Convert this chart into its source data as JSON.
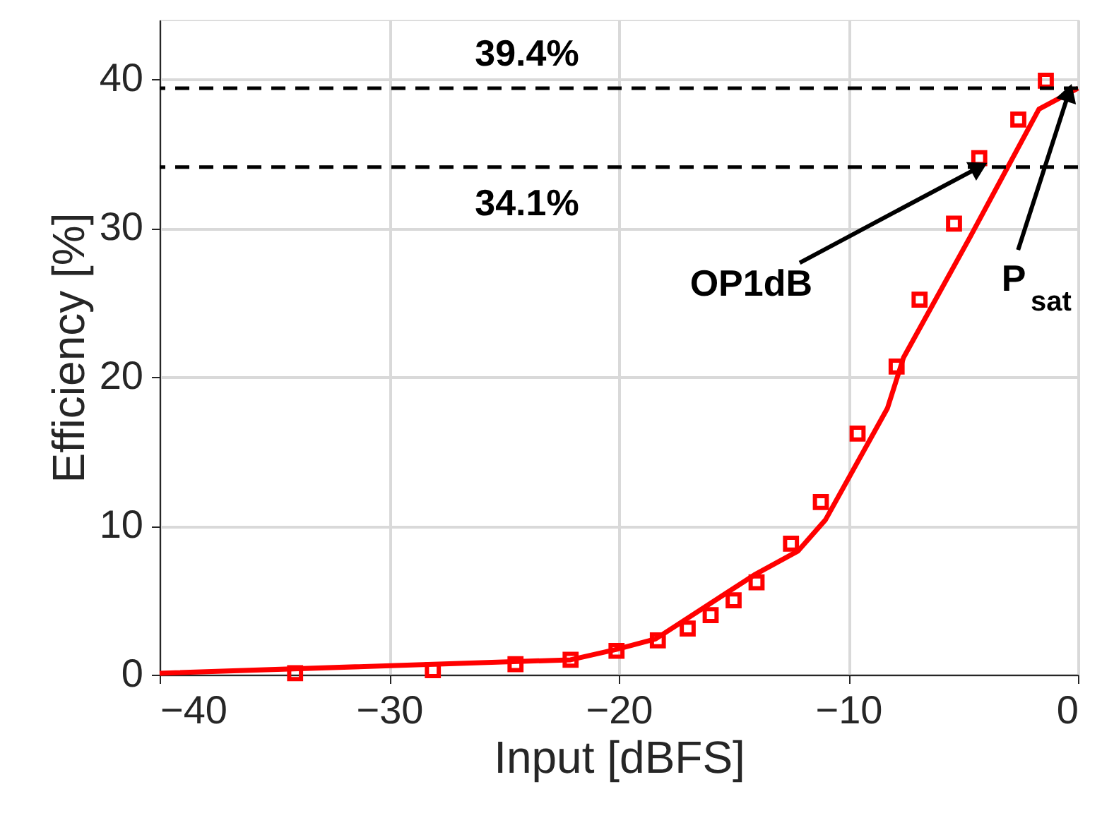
{
  "chart_data": {
    "type": "line",
    "xlabel": "Input [dBFS]",
    "ylabel": "Efficiency [%]",
    "xlim": [
      -40,
      0
    ],
    "xticks": [
      -40,
      -30,
      -20,
      -10,
      0
    ],
    "ylim": [
      0,
      44
    ],
    "yticks": [
      0,
      10,
      20,
      30,
      40
    ],
    "grid": true,
    "series": [
      {
        "type": "scatter",
        "marker": "square",
        "color": "#ff0000",
        "x": [
          -34.1,
          -28.1,
          -24.5,
          -22.1,
          -20.1,
          -18.3,
          -17.0,
          -16.0,
          -15.0,
          -14.0,
          -12.5,
          -11.2,
          -9.6,
          -7.9,
          -6.9,
          -5.4,
          -4.3,
          -2.6,
          -1.4
        ],
        "values": [
          0.1,
          0.3,
          0.7,
          1.0,
          1.6,
          2.3,
          3.1,
          4.0,
          5.0,
          6.2,
          8.8,
          11.6,
          16.2,
          20.7,
          25.2,
          30.3,
          34.7,
          37.3,
          39.9
        ]
      },
      {
        "marker": "none",
        "line_style": "solid",
        "color": "#ff0000",
        "x": [
          -40,
          -22.1,
          -20.1,
          -18.4,
          -14.1,
          -12.2,
          -11.0,
          -8.3,
          -7.6,
          -4.7,
          -1.7,
          0
        ],
        "values": [
          0.1,
          1.0,
          1.7,
          2.4,
          6.7,
          8.3,
          10.4,
          17.9,
          21.3,
          29.4,
          38.0,
          39.4
        ]
      }
    ],
    "ref_lines": [
      {
        "axis": "y",
        "value": 39.4,
        "label": "39.4%",
        "color": "#000000",
        "line_style": "dashed"
      },
      {
        "axis": "y",
        "value": 34.1,
        "label": "34.1%",
        "color": "#000000",
        "line_style": "dashed"
      }
    ],
    "annotations": [
      {
        "text": "OP1dB",
        "x": -4.3,
        "y": 34.1
      },
      {
        "text": "P$_{sat}$",
        "x": -0.4,
        "y": 39.1
      }
    ]
  }
}
